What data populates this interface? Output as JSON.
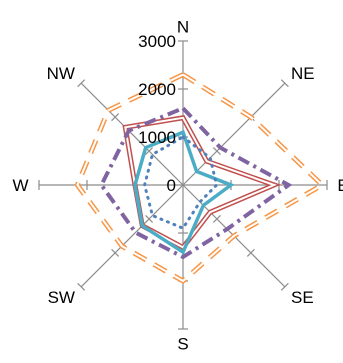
{
  "chart_data": {
    "type": "radar",
    "categories": [
      "N",
      "NE",
      "E",
      "SE",
      "S",
      "SW",
      "W",
      "NW"
    ],
    "radial_ticks": [
      "0",
      "1000",
      "2000",
      "3000"
    ],
    "rlim": [
      0,
      3000
    ],
    "grid": false,
    "legend": "none",
    "series": [
      {
        "values": [
          2300,
          2000,
          2900,
          1500,
          2000,
          1800,
          2200,
          2200
        ],
        "color": "#F79646",
        "style": "double-dashed",
        "fill": "#ffffff"
      },
      {
        "values": [
          1400,
          700,
          1900,
          800,
          1300,
          1200,
          1000,
          1700
        ],
        "color": "#C0504D",
        "style": "double-solid",
        "fill": "#ffffff"
      },
      {
        "values": [
          1600,
          1100,
          2200,
          1300,
          1500,
          1400,
          1700,
          1600
        ],
        "color": "#8064A2",
        "style": "dash-dot",
        "fill": "none"
      },
      {
        "values": [
          1100,
          400,
          1000,
          600,
          1400,
          1200,
          1000,
          1100
        ],
        "color": "#4BACC6",
        "style": "solid",
        "fill": "none"
      },
      {
        "values": [
          1000,
          800,
          700,
          500,
          900,
          900,
          800,
          900
        ],
        "color": "#4F81BD",
        "style": "dotted",
        "fill": "none"
      }
    ]
  }
}
